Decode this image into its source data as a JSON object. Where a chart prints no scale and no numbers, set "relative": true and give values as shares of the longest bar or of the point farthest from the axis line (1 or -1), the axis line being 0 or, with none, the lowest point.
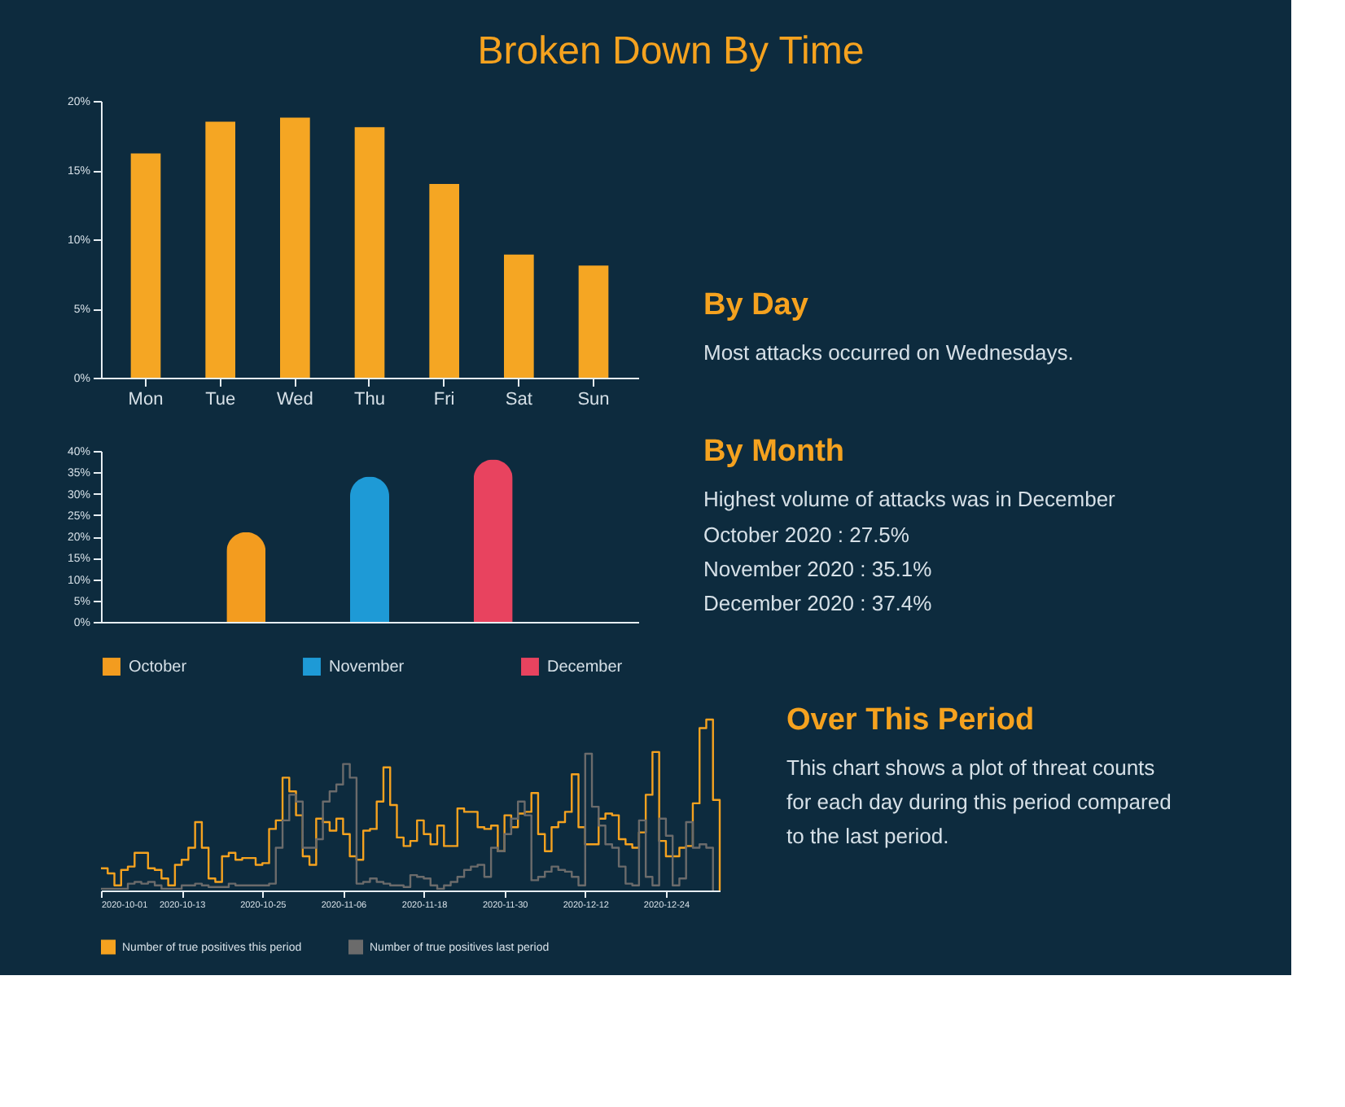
{
  "chart_data": [
    {
      "type": "bar",
      "title": "Broken Down By Time",
      "categories": [
        "Mon",
        "Tue",
        "Wed",
        "Thu",
        "Fri",
        "Sat",
        "Sun"
      ],
      "values": [
        16.2,
        18.5,
        18.8,
        18.1,
        14.0,
        8.9,
        8.1
      ],
      "color": "#f5a623",
      "ylim": [
        0,
        20
      ],
      "yticks": [
        {
          "value": 0,
          "label": "0%"
        },
        {
          "value": 5,
          "label": "5%"
        },
        {
          "value": 10,
          "label": "10%"
        },
        {
          "value": 15,
          "label": "15%"
        },
        {
          "value": 20,
          "label": "20%"
        }
      ],
      "grid": false,
      "annotations": [
        "By Day",
        "Most attacks occurred on Wednesdays."
      ]
    },
    {
      "type": "bar",
      "categories": [
        null
      ],
      "series": [
        {
          "name": "October",
          "color": "#f39c1f",
          "values": [
            21
          ]
        },
        {
          "name": "November",
          "color": "#1e9ad6",
          "values": [
            34
          ]
        },
        {
          "name": "December",
          "color": "#e8435f",
          "values": [
            38
          ]
        }
      ],
      "ylim": [
        0,
        40
      ],
      "yticks": [
        {
          "value": 0,
          "label": "0%"
        },
        {
          "value": 5,
          "label": "5%"
        },
        {
          "value": 10,
          "label": "10%"
        },
        {
          "value": 15,
          "label": "15%"
        },
        {
          "value": 20,
          "label": "20%"
        },
        {
          "value": 25,
          "label": "25%"
        },
        {
          "value": 30,
          "label": "30%"
        },
        {
          "value": 35,
          "label": "35%"
        },
        {
          "value": 40,
          "label": "40%"
        }
      ],
      "grid": false,
      "legend": "bottom",
      "tick_labels": "y",
      "annotations": [
        "By Month",
        "Highest volume of attacks was in December",
        "October 2020        :        27.5%",
        "November 2020      :        35.1%",
        "December 2020      :        37.4%"
      ]
    },
    {
      "type": "step",
      "relative": true,
      "legend": "bottom",
      "tick_labels": "x",
      "grid": false,
      "x": [
        "2020-10-01",
        "2020-10-02",
        "2020-10-03",
        "2020-10-04",
        "2020-10-05",
        "2020-10-06",
        "2020-10-07",
        "2020-10-08",
        "2020-10-09",
        "2020-10-10",
        "2020-10-11",
        "2020-10-12",
        "2020-10-13",
        "2020-10-14",
        "2020-10-15",
        "2020-10-16",
        "2020-10-17",
        "2020-10-18",
        "2020-10-19",
        "2020-10-20",
        "2020-10-21",
        "2020-10-22",
        "2020-10-23",
        "2020-10-24",
        "2020-10-25",
        "2020-10-26",
        "2020-10-27",
        "2020-10-28",
        "2020-10-29",
        "2020-10-30",
        "2020-10-31",
        "2020-11-01",
        "2020-11-02",
        "2020-11-03",
        "2020-11-04",
        "2020-11-05",
        "2020-11-06",
        "2020-11-07",
        "2020-11-08",
        "2020-11-09",
        "2020-11-10",
        "2020-11-11",
        "2020-11-12",
        "2020-11-13",
        "2020-11-14",
        "2020-11-15",
        "2020-11-16",
        "2020-11-17",
        "2020-11-18",
        "2020-11-19",
        "2020-11-20",
        "2020-11-21",
        "2020-11-22",
        "2020-11-23",
        "2020-11-24",
        "2020-11-25",
        "2020-11-26",
        "2020-11-27",
        "2020-11-28",
        "2020-11-29",
        "2020-11-30",
        "2020-12-01",
        "2020-12-02",
        "2020-12-03",
        "2020-12-04",
        "2020-12-05",
        "2020-12-06",
        "2020-12-07",
        "2020-12-08",
        "2020-12-09",
        "2020-12-10",
        "2020-12-11",
        "2020-12-12",
        "2020-12-13",
        "2020-12-14",
        "2020-12-15",
        "2020-12-16",
        "2020-12-17",
        "2020-12-18",
        "2020-12-19",
        "2020-12-20",
        "2020-12-21",
        "2020-12-22",
        "2020-12-23",
        "2020-12-24",
        "2020-12-25",
        "2020-12-26",
        "2020-12-27",
        "2020-12-28",
        "2020-12-29",
        "2020-12-30",
        "2020-12-31",
        "2021-01-01"
      ],
      "xlim": [
        "2020-10-01",
        "2021-01-01"
      ],
      "xticks": [
        "2020-10-01",
        "2020-10-13",
        "2020-10-25",
        "2020-11-06",
        "2020-11-18",
        "2020-11-30",
        "2020-12-12",
        "2020-12-24"
      ],
      "series": [
        {
          "name": "Number of true positives this period",
          "color": "#f5a21f",
          "values": [
            0.13,
            0.1,
            0.03,
            0.12,
            0.14,
            0.22,
            0.22,
            0.13,
            0.12,
            0.07,
            0.03,
            0.15,
            0.18,
            0.25,
            0.4,
            0.25,
            0.07,
            0.05,
            0.2,
            0.22,
            0.18,
            0.19,
            0.19,
            0.15,
            0.16,
            0.36,
            0.41,
            0.66,
            0.58,
            0.44,
            0.2,
            0.15,
            0.42,
            0.4,
            0.35,
            0.42,
            0.33,
            0.2,
            0.18,
            0.35,
            0.36,
            0.52,
            0.72,
            0.5,
            0.31,
            0.26,
            0.29,
            0.41,
            0.33,
            0.27,
            0.38,
            0.26,
            0.26,
            0.48,
            0.46,
            0.46,
            0.37,
            0.36,
            0.38,
            0.23,
            0.44,
            0.37,
            0.45,
            0.46,
            0.57,
            0.33,
            0.23,
            0.37,
            0.4,
            0.46,
            0.68,
            0.37,
            0.27,
            0.27,
            0.42,
            0.45,
            0.44,
            0.3,
            0.27,
            0.25,
            0.34,
            0.56,
            0.81,
            0.29,
            0.2,
            0.2,
            0.25,
            0.26,
            0.51,
            0.95,
            1.0,
            0.53,
            0
          ]
        },
        {
          "name": "Number of true positives last period",
          "color": "#6b6b6b",
          "values": [
            0.01,
            0.01,
            0.01,
            0.01,
            0.04,
            0.05,
            0.04,
            0.05,
            0.03,
            0.01,
            0.01,
            0.01,
            0.03,
            0.03,
            0.04,
            0.03,
            0.02,
            0.02,
            0.02,
            0.04,
            0.03,
            0.03,
            0.03,
            0.03,
            0.03,
            0.04,
            0.25,
            0.41,
            0.56,
            0.52,
            0.25,
            0.25,
            0.3,
            0.52,
            0.58,
            0.62,
            0.74,
            0.66,
            0.04,
            0.05,
            0.07,
            0.05,
            0.04,
            0.03,
            0.03,
            0.02,
            0.09,
            0.08,
            0.07,
            0.03,
            0.01,
            0.03,
            0.05,
            0.08,
            0.12,
            0.14,
            0.15,
            0.08,
            0.25,
            0.23,
            0.33,
            0.42,
            0.52,
            0.44,
            0.06,
            0.08,
            0.11,
            0.14,
            0.12,
            0.11,
            0.08,
            0.03,
            0.8,
            0.49,
            0.38,
            0.27,
            0.25,
            0.14,
            0.04,
            0.03,
            0.41,
            0.08,
            0.03,
            0.42,
            0.32,
            0.03,
            0.07,
            0.4,
            0.25,
            0.27,
            0.25,
            0,
            null
          ]
        }
      ],
      "annotations": [
        "Over This Period",
        "This chart shows a plot of threat counts",
        "for each day during this period compared",
        "to the last period."
      ]
    }
  ]
}
